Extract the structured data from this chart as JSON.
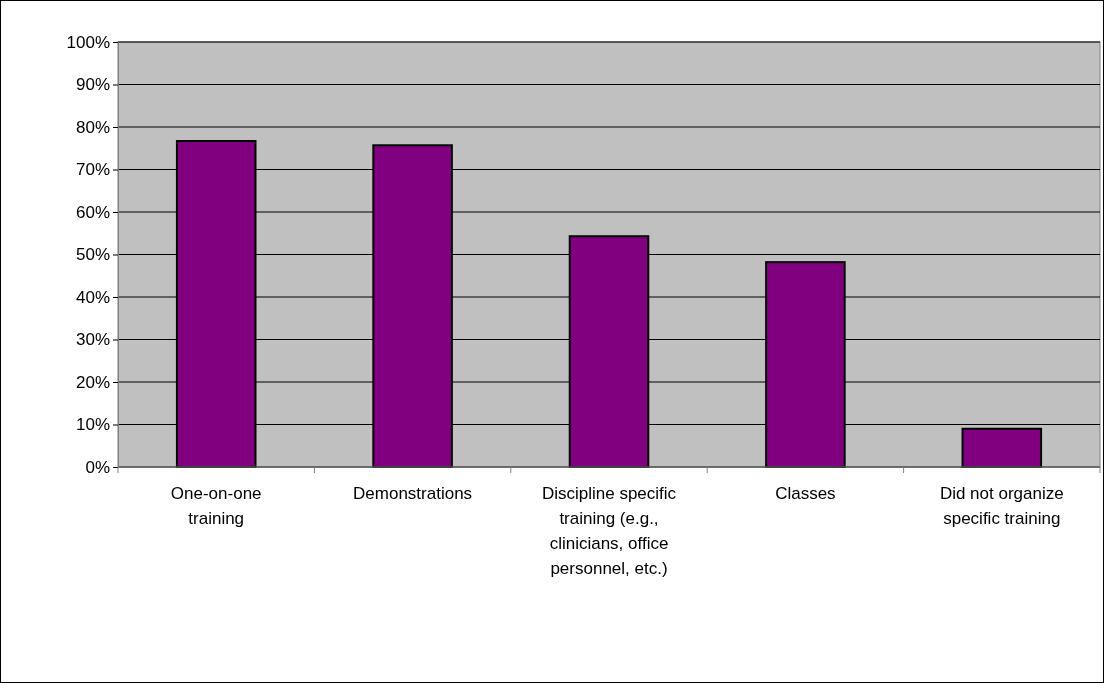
{
  "chart_data": {
    "type": "bar",
    "categories": [
      "One-on-one training",
      "Demonstrations",
      "Discipline specific training (e.g., clinicians, office personnel, etc.)",
      "Classes",
      "Did not organize specific training"
    ],
    "values": [
      76.7,
      75.7,
      54.3,
      48.2,
      9.0
    ],
    "color": "#800080",
    "ylim": [
      0,
      100
    ],
    "yticks": [
      {
        "value": 0,
        "label": "0%"
      },
      {
        "value": 10,
        "label": "10%"
      },
      {
        "value": 20,
        "label": "20%"
      },
      {
        "value": 30,
        "label": "30%"
      },
      {
        "value": 40,
        "label": "40%"
      },
      {
        "value": 50,
        "label": "50%"
      },
      {
        "value": 60,
        "label": "60%"
      },
      {
        "value": 70,
        "label": "70%"
      },
      {
        "value": 80,
        "label": "80%"
      },
      {
        "value": 90,
        "label": "90%"
      },
      {
        "value": 100,
        "label": "100%"
      }
    ],
    "grid": "y"
  }
}
